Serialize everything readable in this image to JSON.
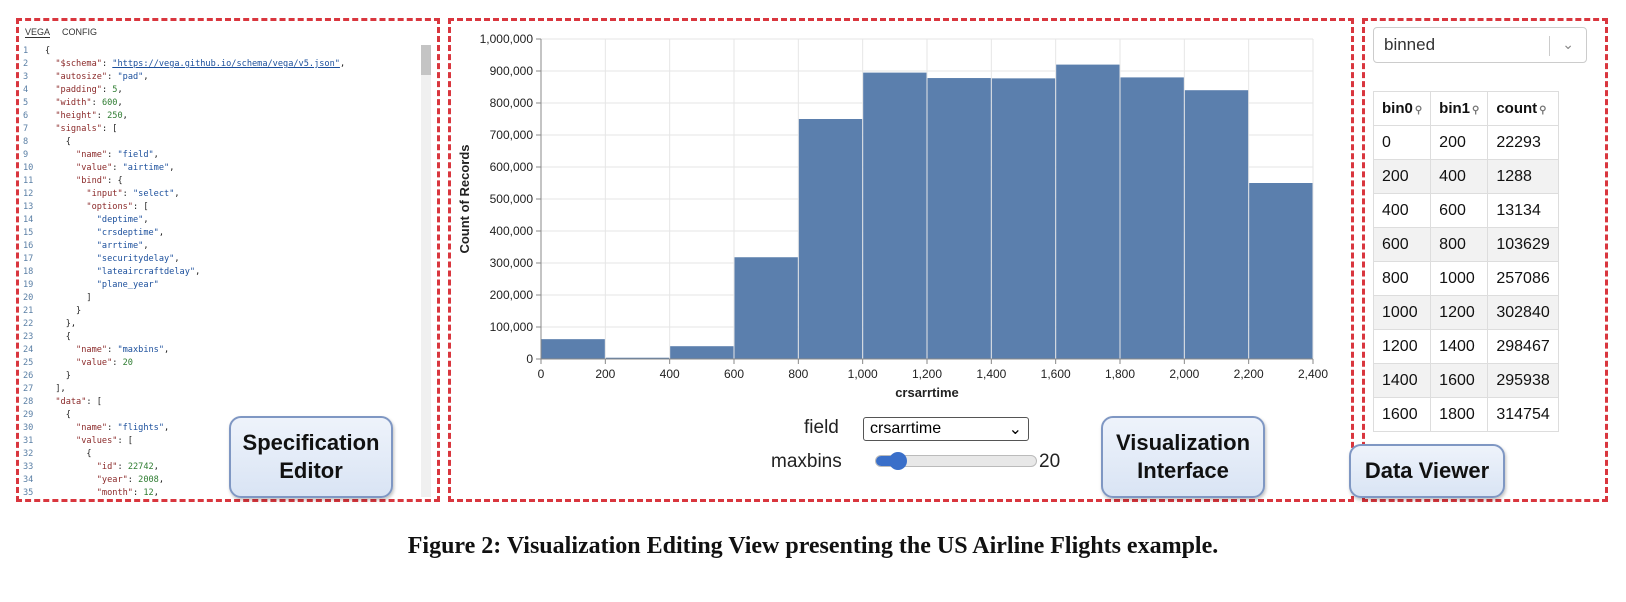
{
  "editor": {
    "tabs": [
      "VEGA",
      "CONFIG"
    ],
    "lines": [
      [
        {
          "t": "{"
        }
      ],
      [
        {
          "t": "  "
        },
        {
          "t": "\"$schema\"",
          "c": "k"
        },
        {
          "t": ": "
        },
        {
          "t": "\"https://vega.github.io/schema/vega/v5.json\"",
          "c": "u"
        },
        {
          "t": ","
        }
      ],
      [
        {
          "t": "  "
        },
        {
          "t": "\"autosize\"",
          "c": "k"
        },
        {
          "t": ": "
        },
        {
          "t": "\"pad\"",
          "c": "s"
        },
        {
          "t": ","
        }
      ],
      [
        {
          "t": "  "
        },
        {
          "t": "\"padding\"",
          "c": "k"
        },
        {
          "t": ": "
        },
        {
          "t": "5",
          "c": "n"
        },
        {
          "t": ","
        }
      ],
      [
        {
          "t": "  "
        },
        {
          "t": "\"width\"",
          "c": "k"
        },
        {
          "t": ": "
        },
        {
          "t": "600",
          "c": "n"
        },
        {
          "t": ","
        }
      ],
      [
        {
          "t": "  "
        },
        {
          "t": "\"height\"",
          "c": "k"
        },
        {
          "t": ": "
        },
        {
          "t": "250",
          "c": "n"
        },
        {
          "t": ","
        }
      ],
      [
        {
          "t": "  "
        },
        {
          "t": "\"signals\"",
          "c": "k"
        },
        {
          "t": ": ["
        }
      ],
      [
        {
          "t": "    {"
        }
      ],
      [
        {
          "t": "      "
        },
        {
          "t": "\"name\"",
          "c": "k"
        },
        {
          "t": ": "
        },
        {
          "t": "\"field\"",
          "c": "s"
        },
        {
          "t": ","
        }
      ],
      [
        {
          "t": "      "
        },
        {
          "t": "\"value\"",
          "c": "k"
        },
        {
          "t": ": "
        },
        {
          "t": "\"airtime\"",
          "c": "s"
        },
        {
          "t": ","
        }
      ],
      [
        {
          "t": "      "
        },
        {
          "t": "\"bind\"",
          "c": "k"
        },
        {
          "t": ": {"
        }
      ],
      [
        {
          "t": "        "
        },
        {
          "t": "\"input\"",
          "c": "k"
        },
        {
          "t": ": "
        },
        {
          "t": "\"select\"",
          "c": "s"
        },
        {
          "t": ","
        }
      ],
      [
        {
          "t": "        "
        },
        {
          "t": "\"options\"",
          "c": "k"
        },
        {
          "t": ": ["
        }
      ],
      [
        {
          "t": "          "
        },
        {
          "t": "\"deptime\"",
          "c": "s"
        },
        {
          "t": ","
        }
      ],
      [
        {
          "t": "          "
        },
        {
          "t": "\"crsdeptime\"",
          "c": "s"
        },
        {
          "t": ","
        }
      ],
      [
        {
          "t": "          "
        },
        {
          "t": "\"arrtime\"",
          "c": "s"
        },
        {
          "t": ","
        }
      ],
      [
        {
          "t": "          "
        },
        {
          "t": "\"securitydelay\"",
          "c": "s"
        },
        {
          "t": ","
        }
      ],
      [
        {
          "t": "          "
        },
        {
          "t": "\"lateaircraftdelay\"",
          "c": "s"
        },
        {
          "t": ","
        }
      ],
      [
        {
          "t": "          "
        },
        {
          "t": "\"plane_year\"",
          "c": "s"
        }
      ],
      [
        {
          "t": "        ]"
        }
      ],
      [
        {
          "t": "      }"
        }
      ],
      [
        {
          "t": "    },"
        }
      ],
      [
        {
          "t": "    {"
        }
      ],
      [
        {
          "t": "      "
        },
        {
          "t": "\"name\"",
          "c": "k"
        },
        {
          "t": ": "
        },
        {
          "t": "\"maxbins\"",
          "c": "s"
        },
        {
          "t": ","
        }
      ],
      [
        {
          "t": "      "
        },
        {
          "t": "\"value\"",
          "c": "k"
        },
        {
          "t": ": "
        },
        {
          "t": "20",
          "c": "n"
        }
      ],
      [
        {
          "t": "    }"
        }
      ],
      [
        {
          "t": "  ],"
        }
      ],
      [
        {
          "t": "  "
        },
        {
          "t": "\"data\"",
          "c": "k"
        },
        {
          "t": ": ["
        }
      ],
      [
        {
          "t": "    {"
        }
      ],
      [
        {
          "t": "      "
        },
        {
          "t": "\"name\"",
          "c": "k"
        },
        {
          "t": ": "
        },
        {
          "t": "\"flights\"",
          "c": "s"
        },
        {
          "t": ","
        }
      ],
      [
        {
          "t": "      "
        },
        {
          "t": "\"values\"",
          "c": "k"
        },
        {
          "t": ": ["
        }
      ],
      [
        {
          "t": "        {"
        }
      ],
      [
        {
          "t": "          "
        },
        {
          "t": "\"id\"",
          "c": "k"
        },
        {
          "t": ": "
        },
        {
          "t": "22742",
          "c": "n"
        },
        {
          "t": ","
        }
      ],
      [
        {
          "t": "          "
        },
        {
          "t": "\"year\"",
          "c": "k"
        },
        {
          "t": ": "
        },
        {
          "t": "2008",
          "c": "n"
        },
        {
          "t": ","
        }
      ],
      [
        {
          "t": "          "
        },
        {
          "t": "\"month\"",
          "c": "k"
        },
        {
          "t": ": "
        },
        {
          "t": "12",
          "c": "n"
        },
        {
          "t": ","
        }
      ]
    ]
  },
  "labels": {
    "editor": "Specification Editor",
    "vis": "Visualization Interface",
    "data": "Data Viewer"
  },
  "controls": {
    "field_label": "field",
    "field_value": "crsarrtime",
    "maxbins_label": "maxbins",
    "maxbins_value": "20",
    "maxbins_fraction": 0.08
  },
  "chart_data": {
    "type": "bar",
    "xlabel": "crsarrtime",
    "ylabel": "Count of Records",
    "xlim": [
      0,
      2400
    ],
    "ylim": [
      0,
      1000000
    ],
    "x_ticks": [
      0,
      200,
      400,
      600,
      800,
      1000,
      1200,
      1400,
      1600,
      1800,
      2000,
      2200,
      2400
    ],
    "x_tick_labels": [
      "0",
      "200",
      "400",
      "600",
      "800",
      "1,000",
      "1,200",
      "1,400",
      "1,600",
      "1,800",
      "2,000",
      "2,200",
      "2,400"
    ],
    "y_ticks": [
      0,
      100000,
      200000,
      300000,
      400000,
      500000,
      600000,
      700000,
      800000,
      900000,
      1000000
    ],
    "y_tick_labels": [
      "0",
      "100,000",
      "200,000",
      "300,000",
      "400,000",
      "500,000",
      "600,000",
      "700,000",
      "800,000",
      "900,000",
      "1,000,000"
    ],
    "bins": [
      {
        "x0": 0,
        "x1": 200,
        "count": 62000
      },
      {
        "x0": 200,
        "x1": 400,
        "count": 4000
      },
      {
        "x0": 400,
        "x1": 600,
        "count": 40000
      },
      {
        "x0": 600,
        "x1": 800,
        "count": 318000
      },
      {
        "x0": 800,
        "x1": 1000,
        "count": 750000
      },
      {
        "x0": 1000,
        "x1": 1200,
        "count": 895000
      },
      {
        "x0": 1200,
        "x1": 1400,
        "count": 878000
      },
      {
        "x0": 1400,
        "x1": 1600,
        "count": 877000
      },
      {
        "x0": 1600,
        "x1": 1800,
        "count": 920000
      },
      {
        "x0": 1800,
        "x1": 2000,
        "count": 880000
      },
      {
        "x0": 2000,
        "x1": 2200,
        "count": 840000
      },
      {
        "x0": 2200,
        "x1": 2400,
        "count": 550000
      }
    ],
    "bar_color": "#5b7fad",
    "grid": true
  },
  "data_viewer": {
    "dataset": "binned",
    "columns": [
      "bin0",
      "bin1",
      "count"
    ],
    "rows": [
      [
        "0",
        "200",
        "22293"
      ],
      [
        "200",
        "400",
        "1288"
      ],
      [
        "400",
        "600",
        "13134"
      ],
      [
        "600",
        "800",
        "103629"
      ],
      [
        "800",
        "1000",
        "257086"
      ],
      [
        "1000",
        "1200",
        "302840"
      ],
      [
        "1200",
        "1400",
        "298467"
      ],
      [
        "1400",
        "1600",
        "295938"
      ],
      [
        "1600",
        "1800",
        "314754"
      ]
    ]
  },
  "caption": "Figure 2: Visualization Editing View presenting the US Airline Flights example."
}
